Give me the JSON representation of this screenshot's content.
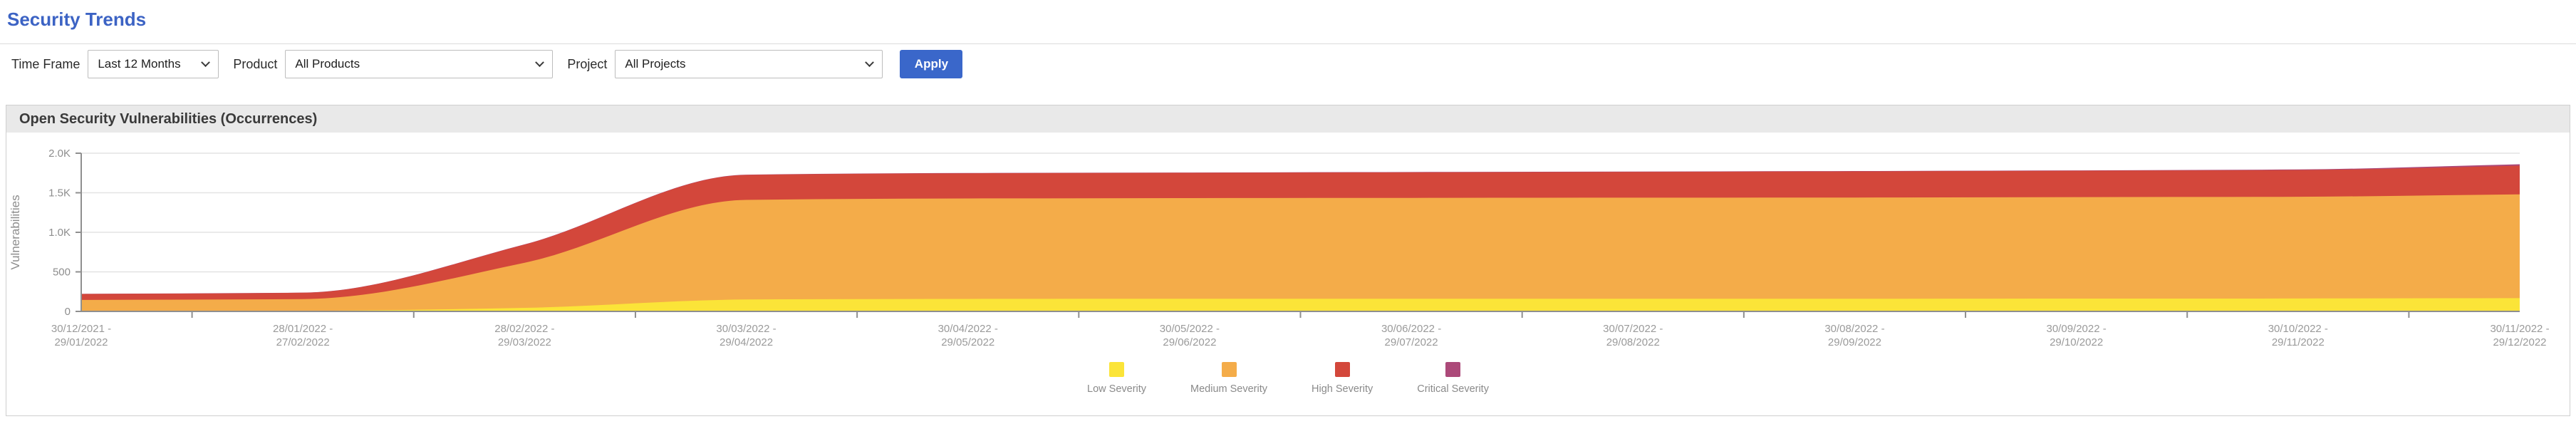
{
  "page": {
    "title": "Security Trends"
  },
  "colors": {
    "accent_blue": "#3C63C4",
    "apply_button_bg": "#3A67CA",
    "panel_header_bg": "#E9E9E9",
    "grid_line": "#e3e3e3",
    "axis_line": "#8f8f8f",
    "tick_text": "#8d8d8d"
  },
  "filters": {
    "time_frame_label": "Time Frame",
    "time_frame_value": "Last 12 Months",
    "product_label": "Product",
    "product_value": "All Products",
    "project_label": "Project",
    "project_value": "All Projects",
    "apply_label": "Apply"
  },
  "panel": {
    "title": "Open Security Vulnerabilities (Occurrences)"
  },
  "chart_data": {
    "type": "area",
    "stacked": true,
    "smooth": true,
    "title": "Open Security Vulnerabilities (Occurrences)",
    "xlabel": "",
    "ylabel": "Vulnerabilities",
    "ylim": [
      0,
      2000
    ],
    "grid": true,
    "legend_position": "bottom",
    "yticks": [
      {
        "value": 0,
        "label": "0"
      },
      {
        "value": 500,
        "label": "500"
      },
      {
        "value": 1000,
        "label": "1.0K"
      },
      {
        "value": 1500,
        "label": "1.5K"
      },
      {
        "value": 2000,
        "label": "2.0K"
      }
    ],
    "categories": [
      "30/12/2021 - 29/01/2022",
      "28/01/2022 - 27/02/2022",
      "28/02/2022 - 29/03/2022",
      "30/03/2022 - 29/04/2022",
      "30/04/2022 - 29/05/2022",
      "30/05/2022 - 29/06/2022",
      "30/06/2022 - 29/07/2022",
      "30/07/2022 - 29/08/2022",
      "30/08/2022 - 29/09/2022",
      "30/09/2022 - 29/10/2022",
      "30/10/2022 - 29/11/2022",
      "30/11/2022 - 29/12/2022"
    ],
    "series": [
      {
        "name": "Low Severity",
        "color": "#FBE438",
        "values": [
          5,
          8,
          45,
          150,
          158,
          160,
          160,
          160,
          160,
          162,
          163,
          168
        ]
      },
      {
        "name": "Medium Severity",
        "color": "#F4AC49",
        "values": [
          140,
          148,
          570,
          1260,
          1270,
          1272,
          1275,
          1278,
          1280,
          1283,
          1287,
          1312
        ]
      },
      {
        "name": "High Severity",
        "color": "#D3473B",
        "values": [
          75,
          80,
          230,
          315,
          318,
          320,
          323,
          326,
          330,
          333,
          337,
          362
        ]
      },
      {
        "name": "Critical Severity",
        "color": "#AC4979",
        "values": [
          2,
          2,
          3,
          4,
          4,
          4,
          4,
          4,
          5,
          5,
          8,
          18
        ]
      }
    ]
  }
}
